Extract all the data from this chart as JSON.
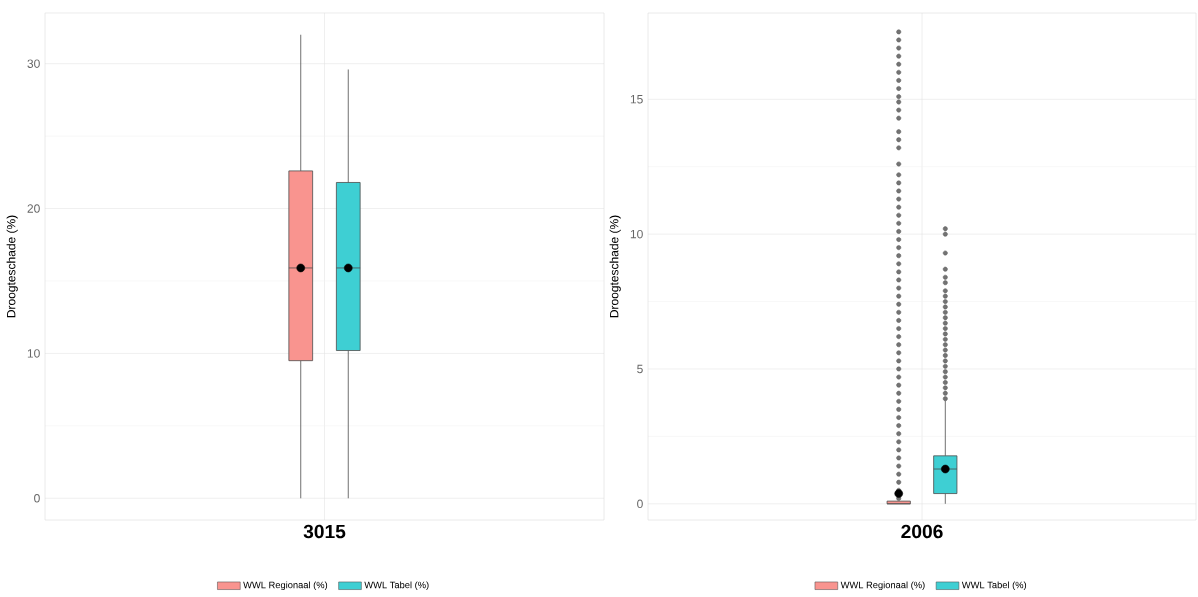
{
  "chart_data": [
    {
      "type": "box",
      "categories": [
        "3015"
      ],
      "ylabel": "Droogteschade (%)",
      "ylim": [
        -1.5,
        33.5
      ],
      "yticks": [
        0,
        10,
        20,
        30
      ],
      "grid": true,
      "legend": "bottom",
      "series": [
        {
          "name": "WWL Regionaal (%)",
          "color": "#f9948f",
          "boxes": [
            {
              "low": 0,
              "q1": 9.5,
              "median": 15.9,
              "q3": 22.6,
              "high": 32.0,
              "mean": 15.9
            }
          ]
        },
        {
          "name": "WWL Tabel (%)",
          "color": "#3ecfd3",
          "boxes": [
            {
              "low": 0,
              "q1": 10.2,
              "median": 15.9,
              "q3": 21.8,
              "high": 29.6,
              "mean": 15.9
            }
          ]
        }
      ]
    },
    {
      "type": "box",
      "categories": [
        "2006"
      ],
      "ylabel": "Droogteschade (%)",
      "ylim": [
        -0.6,
        18.2
      ],
      "yticks": [
        0,
        5,
        10,
        15
      ],
      "grid": true,
      "legend": "bottom",
      "series": [
        {
          "name": "WWL Regionaal (%)",
          "color": "#f9948f",
          "boxes": [
            {
              "low": 0,
              "q1": 0,
              "median": 0,
              "q3": 0.1,
              "high": 0.1,
              "mean": 0.38,
              "outliers": [
                0.2,
                0.5,
                0.8,
                1.1,
                1.4,
                1.7,
                2.0,
                2.3,
                2.6,
                2.9,
                3.2,
                3.5,
                3.8,
                4.1,
                4.4,
                4.7,
                5.0,
                5.3,
                5.6,
                5.9,
                6.2,
                6.5,
                6.8,
                7.1,
                7.4,
                7.7,
                8.0,
                8.3,
                8.6,
                8.9,
                9.2,
                9.5,
                9.8,
                10.1,
                10.4,
                10.7,
                11.0,
                11.3,
                11.6,
                11.9,
                12.2,
                12.6,
                13.2,
                13.5,
                13.8,
                14.3,
                14.6,
                14.9,
                15.1,
                15.4,
                15.7,
                16.0,
                16.3,
                16.6,
                16.9,
                17.2,
                17.5
              ]
            }
          ]
        },
        {
          "name": "WWL Tabel (%)",
          "color": "#3ecfd3",
          "boxes": [
            {
              "low": 0,
              "q1": 0.38,
              "median": 1.29,
              "q3": 1.78,
              "high": 3.83,
              "mean": 1.29,
              "outliers": [
                3.9,
                4.1,
                4.3,
                4.5,
                4.7,
                4.9,
                5.1,
                5.3,
                5.5,
                5.7,
                5.9,
                6.1,
                6.3,
                6.5,
                6.7,
                6.9,
                7.1,
                7.3,
                7.5,
                7.7,
                7.9,
                8.2,
                8.4,
                8.7,
                9.3,
                10.0,
                10.2
              ]
            }
          ]
        }
      ]
    }
  ]
}
